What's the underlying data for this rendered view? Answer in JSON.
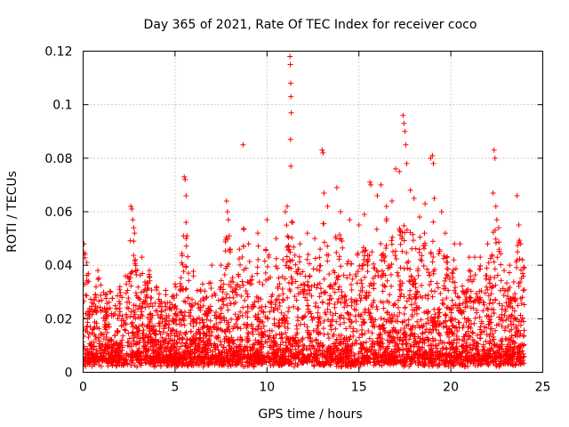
{
  "chart_data": {
    "type": "scatter",
    "title": "Day 365 of 2021, Rate Of TEC Index for receiver coco",
    "xlabel": "GPS time / hours",
    "ylabel": "ROTI / TECUs",
    "xlim": [
      0,
      25
    ],
    "ylim": [
      0,
      0.12
    ],
    "x_ticks": [
      0,
      5,
      10,
      15,
      20,
      25
    ],
    "x_tick_labels": [
      "0",
      "5",
      "10",
      "15",
      "20",
      "25"
    ],
    "y_ticks": [
      0,
      0.02,
      0.04,
      0.06,
      0.08,
      0.1,
      0.12
    ],
    "y_tick_labels": [
      "0",
      "0.02",
      "0.04",
      "0.06",
      "0.08",
      "0.1",
      "0.12"
    ],
    "grid": true,
    "marker": "plus",
    "color": "#ff0000",
    "series": [
      {
        "name": "ROTI",
        "note": "dense cloud of several thousand points between 0 and 24 h; notable peaks listed",
        "points": [
          [
            0.05,
            0.048
          ],
          [
            0.1,
            0.044
          ],
          [
            0.2,
            0.041
          ],
          [
            0.3,
            0.034
          ],
          [
            0.6,
            0.027
          ],
          [
            0.8,
            0.038
          ],
          [
            1.2,
            0.029
          ],
          [
            1.5,
            0.03
          ],
          [
            2.0,
            0.032
          ],
          [
            2.3,
            0.036
          ],
          [
            2.6,
            0.062
          ],
          [
            2.65,
            0.061
          ],
          [
            2.7,
            0.057
          ],
          [
            2.75,
            0.054
          ],
          [
            2.8,
            0.052
          ],
          [
            3.2,
            0.043
          ],
          [
            3.6,
            0.038
          ],
          [
            4.0,
            0.032
          ],
          [
            4.5,
            0.029
          ],
          [
            5.0,
            0.033
          ],
          [
            5.5,
            0.073
          ],
          [
            5.55,
            0.072
          ],
          [
            5.6,
            0.066
          ],
          [
            5.6,
            0.056
          ],
          [
            5.65,
            0.051
          ],
          [
            6.0,
            0.036
          ],
          [
            6.5,
            0.033
          ],
          [
            7.0,
            0.04
          ],
          [
            7.5,
            0.04
          ],
          [
            7.8,
            0.064
          ],
          [
            7.85,
            0.06
          ],
          [
            7.9,
            0.057
          ],
          [
            7.95,
            0.051
          ],
          [
            8.0,
            0.046
          ],
          [
            8.5,
            0.046
          ],
          [
            8.7,
            0.085
          ],
          [
            9.0,
            0.048
          ],
          [
            9.5,
            0.052
          ],
          [
            10.0,
            0.057
          ],
          [
            10.5,
            0.05
          ],
          [
            11.0,
            0.06
          ],
          [
            11.1,
            0.062
          ],
          [
            11.25,
            0.118
          ],
          [
            11.27,
            0.115
          ],
          [
            11.29,
            0.108
          ],
          [
            11.3,
            0.103
          ],
          [
            11.32,
            0.097
          ],
          [
            11.28,
            0.087
          ],
          [
            11.3,
            0.077
          ],
          [
            11.4,
            0.056
          ],
          [
            11.8,
            0.048
          ],
          [
            12.2,
            0.052
          ],
          [
            12.6,
            0.05
          ],
          [
            13.0,
            0.083
          ],
          [
            13.05,
            0.082
          ],
          [
            13.1,
            0.067
          ],
          [
            13.3,
            0.062
          ],
          [
            13.8,
            0.069
          ],
          [
            14.0,
            0.06
          ],
          [
            14.5,
            0.057
          ],
          [
            15.0,
            0.055
          ],
          [
            15.3,
            0.059
          ],
          [
            15.6,
            0.071
          ],
          [
            15.65,
            0.07
          ],
          [
            16.0,
            0.066
          ],
          [
            16.2,
            0.07
          ],
          [
            16.5,
            0.062
          ],
          [
            16.8,
            0.064
          ],
          [
            17.0,
            0.076
          ],
          [
            17.2,
            0.075
          ],
          [
            17.4,
            0.096
          ],
          [
            17.45,
            0.093
          ],
          [
            17.5,
            0.09
          ],
          [
            17.55,
            0.085
          ],
          [
            17.6,
            0.078
          ],
          [
            17.8,
            0.068
          ],
          [
            18.0,
            0.065
          ],
          [
            18.3,
            0.058
          ],
          [
            18.6,
            0.063
          ],
          [
            18.9,
            0.08
          ],
          [
            19.0,
            0.081
          ],
          [
            19.05,
            0.078
          ],
          [
            19.1,
            0.065
          ],
          [
            19.5,
            0.06
          ],
          [
            19.7,
            0.052
          ],
          [
            20.2,
            0.048
          ],
          [
            20.5,
            0.048
          ],
          [
            21.0,
            0.043
          ],
          [
            21.3,
            0.043
          ],
          [
            21.6,
            0.043
          ],
          [
            22.0,
            0.048
          ],
          [
            22.3,
            0.067
          ],
          [
            22.35,
            0.083
          ],
          [
            22.4,
            0.08
          ],
          [
            22.45,
            0.062
          ],
          [
            22.5,
            0.057
          ],
          [
            22.6,
            0.054
          ],
          [
            22.9,
            0.038
          ],
          [
            23.2,
            0.04
          ],
          [
            23.6,
            0.066
          ],
          [
            23.7,
            0.055
          ],
          [
            23.8,
            0.048
          ],
          [
            23.9,
            0.042
          ],
          [
            24.0,
            0.039
          ]
        ]
      }
    ]
  }
}
